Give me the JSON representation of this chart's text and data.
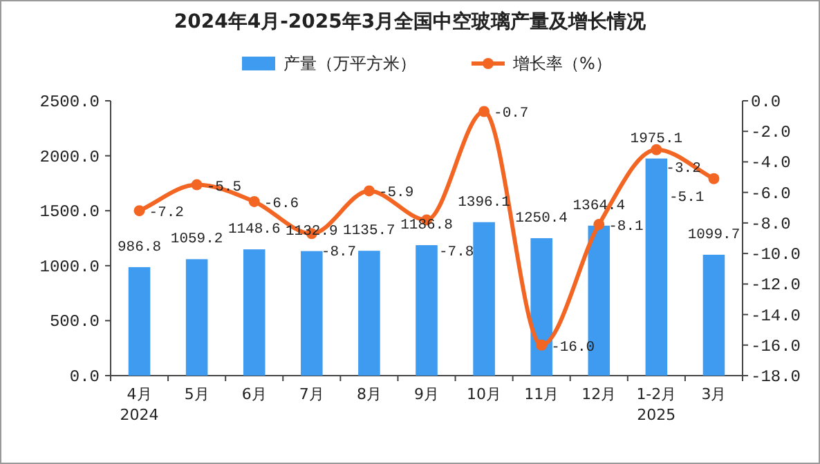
{
  "chart_data": {
    "type": "bar",
    "title": "2024年4月-2025年3月全国中空玻璃产量及增长情况",
    "categories": [
      "4月\n2024",
      "5月",
      "6月",
      "7月",
      "8月",
      "9月",
      "10月",
      "11月",
      "12月",
      "1-2月\n2025",
      "3月"
    ],
    "series": [
      {
        "name": "产量（万平方米）",
        "color": "#3e9bf0",
        "values": [
          986.8,
          1059.2,
          1148.6,
          1132.9,
          1135.7,
          1186.8,
          1396.1,
          1250.4,
          1364.4,
          1975.1,
          1099.7
        ],
        "value_labels": [
          "986.8",
          "1059.2",
          "1148.6",
          "1132.9",
          "1135.7",
          "1186.8",
          "1396.1",
          "1250.4",
          "1364.4",
          "1975.1",
          "1099.7"
        ]
      },
      {
        "name": "增长率（%）",
        "type": "line",
        "axis": "y2",
        "color": "#f26522",
        "marker": "circle",
        "values": [
          -7.2,
          -5.5,
          -6.6,
          -8.7,
          -5.9,
          -7.8,
          -0.7,
          -16.0,
          -8.1,
          -3.2,
          -5.1
        ],
        "value_labels": [
          "-7.2",
          "-5.5",
          "-6.6",
          "-8.7",
          "-5.9",
          "-7.8",
          "-0.7",
          "-16.0",
          "-8.1",
          "-3.2",
          "-5.1"
        ]
      }
    ],
    "ylim": [
      0,
      2500
    ],
    "yticks": [
      {
        "value": 0,
        "label": "0.0"
      },
      {
        "value": 500,
        "label": "500.0"
      },
      {
        "value": 1000,
        "label": "1000.0"
      },
      {
        "value": 1500,
        "label": "1500.0"
      },
      {
        "value": 2000,
        "label": "2000.0"
      },
      {
        "value": 2500,
        "label": "2500.0"
      }
    ],
    "y2lim": [
      -18,
      0
    ],
    "y2ticks": [
      {
        "value": -18,
        "label": "-18.0"
      },
      {
        "value": -16,
        "label": "-16.0"
      },
      {
        "value": -14,
        "label": "-14.0"
      },
      {
        "value": -12,
        "label": "-12.0"
      },
      {
        "value": -10,
        "label": "-10.0"
      },
      {
        "value": -8,
        "label": "-8.0"
      },
      {
        "value": -6,
        "label": "-6.0"
      },
      {
        "value": -4,
        "label": "-4.0"
      },
      {
        "value": -2,
        "label": "-2.0"
      },
      {
        "value": 0,
        "label": "0.0"
      }
    ],
    "legend": "top",
    "grid": false
  }
}
